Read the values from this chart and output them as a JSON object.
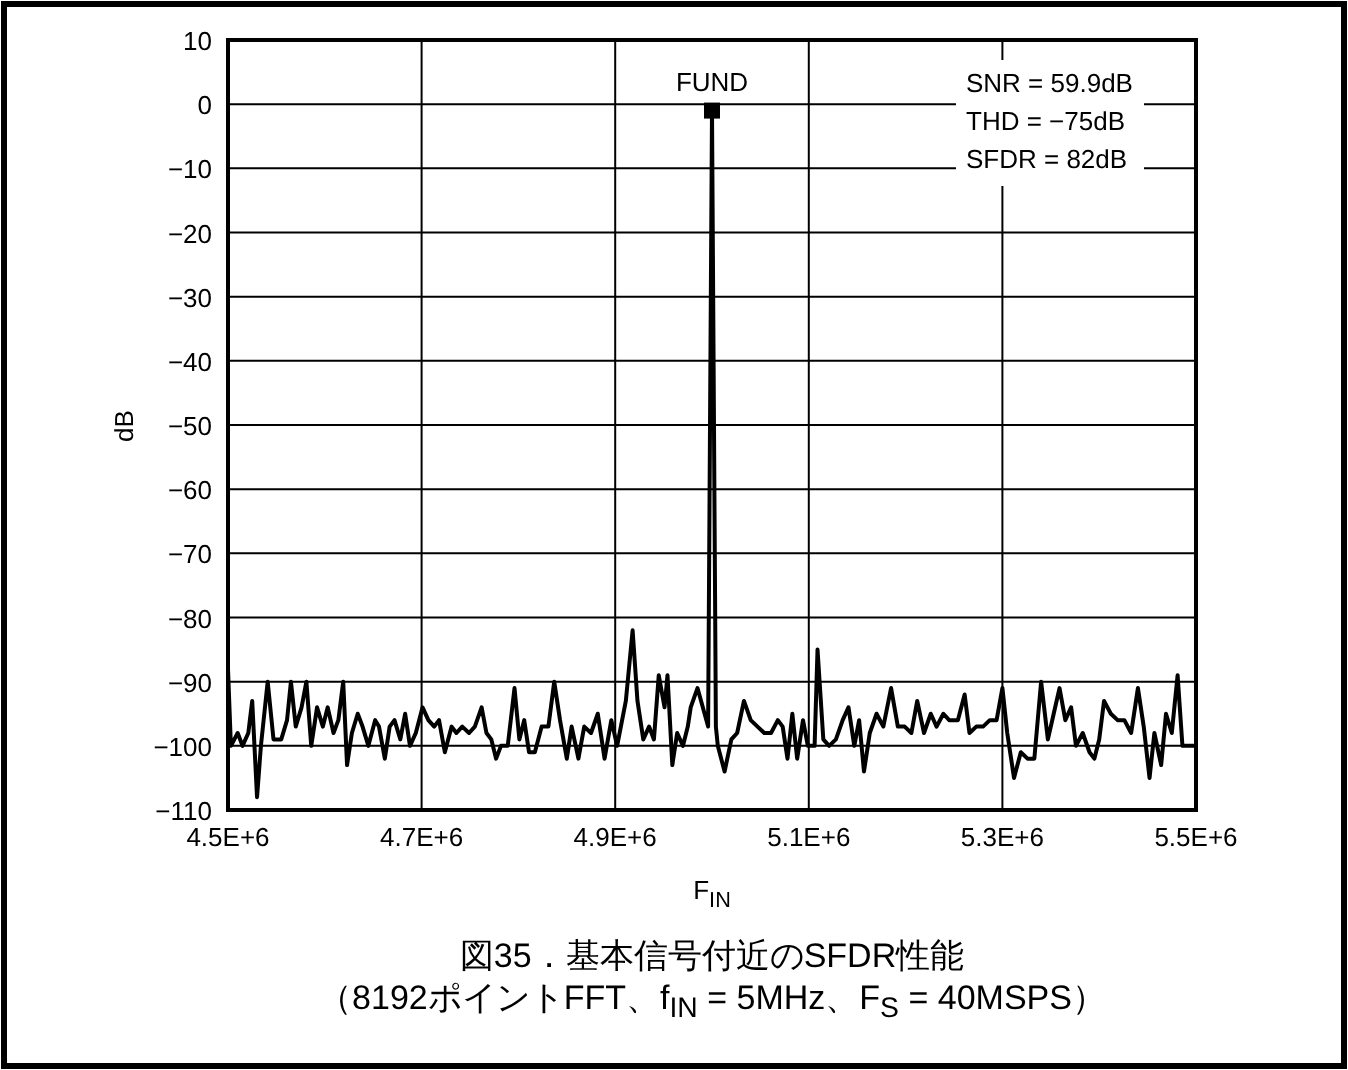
{
  "chart_data": {
    "type": "line",
    "title": "図35．基本信号付近のSFDR性能",
    "subtitle": "（8192ポイントFFT、f$_{IN}$ = 5MHz、F$_{S}$ = 40MSPS）",
    "xlabel": "F$_{IN}$",
    "ylabel": "dB",
    "xlim": [
      4500000,
      5500000
    ],
    "ylim": [
      -110,
      10
    ],
    "xticks": [
      {
        "value": 4500000,
        "label": "4.5E+6"
      },
      {
        "value": 4700000,
        "label": "4.7E+6"
      },
      {
        "value": 4900000,
        "label": "4.9E+6"
      },
      {
        "value": 5100000,
        "label": "5.1E+6"
      },
      {
        "value": 5300000,
        "label": "5.3E+6"
      },
      {
        "value": 5500000,
        "label": "5.5E+6"
      }
    ],
    "yticks": [
      10,
      0,
      {
        "value": -10,
        "label": "−10"
      },
      {
        "value": -20,
        "label": "−20"
      },
      {
        "value": -30,
        "label": "−30"
      },
      {
        "value": -40,
        "label": "−40"
      },
      {
        "value": -50,
        "label": "−50"
      },
      {
        "value": -60,
        "label": "−60"
      },
      {
        "value": -70,
        "label": "−70"
      },
      {
        "value": -80,
        "label": "−80"
      },
      {
        "value": -90,
        "label": "−90"
      },
      {
        "value": -100,
        "label": "−100"
      },
      {
        "value": -110,
        "label": "−110"
      }
    ],
    "grid": true,
    "line_style": "solid",
    "series": [
      {
        "color": "#000000",
        "marker": "none",
        "x": [
          4500000,
          4503000,
          4510000,
          4515000,
          4521000,
          4525000,
          4530000,
          4534000,
          4541000,
          4547000,
          4555000,
          4561000,
          4565000,
          4570000,
          4576000,
          4581000,
          4586000,
          4592000,
          4598000,
          4603000,
          4609000,
          4614000,
          4619000,
          4623000,
          4628000,
          4634000,
          4639000,
          4645000,
          4652000,
          4656000,
          4662000,
          4667000,
          4672000,
          4678000,
          4683000,
          4688000,
          4694000,
          4701000,
          4707000,
          4713000,
          4718000,
          4724000,
          4731000,
          4736000,
          4742000,
          4749000,
          4755000,
          4762000,
          4767000,
          4772000,
          4777000,
          4782000,
          4789000,
          4796000,
          4801000,
          4806000,
          4811000,
          4817000,
          4824000,
          4831000,
          4837000,
          4843000,
          4850000,
          4855000,
          4862000,
          4868000,
          4875000,
          4882000,
          4889000,
          4896000,
          4902000,
          4911000,
          4918000,
          4923000,
          4929000,
          4935000,
          4940000,
          4945000,
          4951000,
          4954000,
          4959000,
          4964000,
          4970000,
          4975000,
          4978000,
          4985000,
          4996000,
          5000000,
          5004000,
          5006000,
          5013000,
          5020000,
          5026000,
          5033000,
          5040000,
          5047000,
          5054000,
          5061000,
          5068000,
          5073000,
          5078000,
          5083000,
          5088000,
          5094000,
          5099000,
          5106000,
          5109000,
          5115000,
          5121000,
          5128000,
          5135000,
          5141000,
          5147000,
          5152000,
          5157000,
          5163000,
          5170000,
          5177000,
          5185000,
          5192000,
          5199000,
          5206000,
          5212000,
          5219000,
          5226000,
          5232000,
          5239000,
          5245000,
          5254000,
          5261000,
          5266000,
          5273000,
          5280000,
          5287000,
          5294000,
          5300000,
          5305000,
          5312000,
          5319000,
          5326000,
          5333000,
          5340000,
          5347000,
          5353000,
          5359000,
          5365000,
          5371000,
          5376000,
          5383000,
          5390000,
          5395000,
          5400000,
          5405000,
          5412000,
          5419000,
          5426000,
          5433000,
          5440000,
          5446000,
          5452000,
          5457000,
          5464000,
          5469000,
          5475000,
          5481000,
          5486000,
          5491000,
          5500000
        ],
        "values": [
          -88,
          -100,
          -98,
          -100,
          -98,
          -93,
          -108,
          -100,
          -90,
          -99,
          -99,
          -96,
          -90,
          -97,
          -94,
          -90,
          -100,
          -94,
          -97,
          -94,
          -98,
          -96,
          -90,
          -103,
          -98,
          -95,
          -97,
          -100,
          -96,
          -97,
          -102,
          -97,
          -96,
          -99,
          -95,
          -100,
          -98,
          -94,
          -96,
          -97,
          -96,
          -101,
          -97,
          -98,
          -97,
          -98,
          -97,
          -94,
          -98,
          -99,
          -102,
          -100,
          -100,
          -91,
          -99,
          -96,
          -101,
          -101,
          -97,
          -97,
          -90,
          -96,
          -102,
          -97,
          -102,
          -97,
          -98,
          -95,
          -102,
          -96,
          -100,
          -93,
          -82,
          -93,
          -99,
          -97,
          -99,
          -89,
          -94,
          -89,
          -103,
          -98,
          -100,
          -97,
          -94,
          -91,
          -97,
          -1,
          -97,
          -100,
          -104,
          -99,
          -98,
          -93,
          -96,
          -97,
          -98,
          -98,
          -96,
          -97,
          -102,
          -95,
          -102,
          -96,
          -100,
          -100,
          -85,
          -99,
          -100,
          -99,
          -96,
          -94,
          -100,
          -96,
          -104,
          -98,
          -95,
          -97,
          -91,
          -97,
          -97,
          -98,
          -93,
          -98,
          -95,
          -97,
          -95,
          -96,
          -96,
          -92,
          -98,
          -97,
          -97,
          -96,
          -96,
          -91,
          -98,
          -105,
          -101,
          -102,
          -102,
          -90,
          -99,
          -95,
          -91,
          -96,
          -94,
          -100,
          -98,
          -101,
          -102,
          -99,
          -93,
          -95,
          -96,
          -96,
          -98,
          -91,
          -97,
          -105,
          -98,
          -103,
          -95,
          -98,
          -89,
          -100,
          -100,
          -100
        ]
      },
      {
        "type": "scatter",
        "color": "#000000",
        "marker": "square",
        "x": [
          5000000
        ],
        "values": [
          -1
        ]
      }
    ],
    "annotations": [
      {
        "text": "FUND",
        "x": 5000000,
        "y": -1
      },
      "SNR = 59.9dB",
      "THD = −75dB",
      "SFDR = 82dB"
    ]
  }
}
